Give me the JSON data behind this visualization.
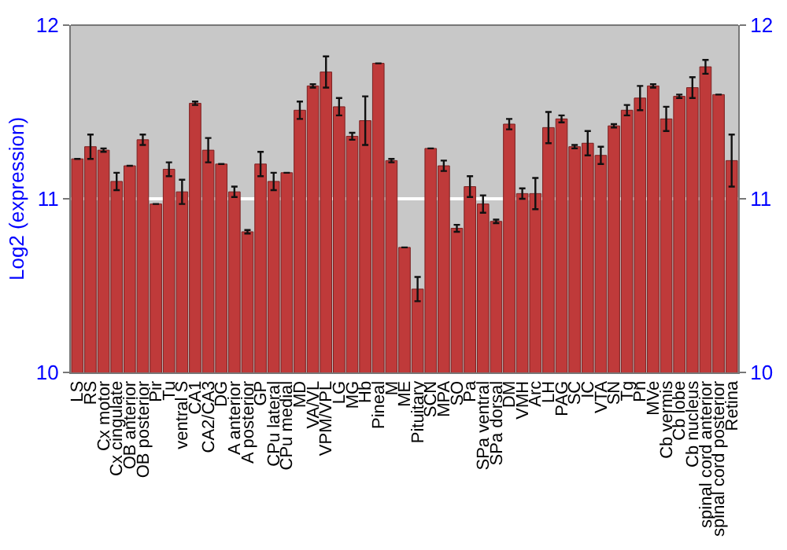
{
  "chart_data": {
    "type": "bar",
    "ylabel": "Log2 (expression)",
    "categories": [
      "LS",
      "RS",
      "Cx motor",
      "Cx cingulate",
      "OB anterior",
      "OB posterior",
      "Pir",
      "Tu",
      "ventral S",
      "CA1",
      "CA2/CA3",
      "DG",
      "A anterior",
      "A posterior",
      "GP",
      "CPu lateral",
      "CPu medial",
      "MD",
      "VA/VL",
      "VPM/VPL",
      "LG",
      "MG",
      "Hb",
      "Pineal",
      "M",
      "ME",
      "Pituitary",
      "SCN",
      "MPA",
      "SO",
      "Pa",
      "SPa ventral",
      "SPa dorsal",
      "DM",
      "VMH",
      "Arc",
      "LH",
      "PAG",
      "SC",
      "IC",
      "VTA",
      "SN",
      "Tg",
      "Pn",
      "MVe",
      "Cb vermis",
      "Cb lobe",
      "Cb nucleus",
      "spinal cord anterior",
      "spinal cord posterior",
      "Retina"
    ],
    "values": [
      11.23,
      11.3,
      11.28,
      11.1,
      11.19,
      11.34,
      10.97,
      11.17,
      11.04,
      11.55,
      11.28,
      11.2,
      11.04,
      10.81,
      11.2,
      11.1,
      11.15,
      11.51,
      11.65,
      11.73,
      11.53,
      11.36,
      11.45,
      11.78,
      11.22,
      10.72,
      10.48,
      11.29,
      11.19,
      10.83,
      11.07,
      10.97,
      10.87,
      11.43,
      11.03,
      11.03,
      11.41,
      11.46,
      11.3,
      11.32,
      11.25,
      11.42,
      11.51,
      11.58,
      11.65,
      11.46,
      11.59,
      11.64,
      11.76,
      11.6,
      11.22
    ],
    "errors": [
      null,
      0.07,
      0.01,
      0.05,
      null,
      0.03,
      null,
      0.04,
      0.07,
      0.01,
      0.07,
      null,
      0.03,
      0.01,
      0.07,
      0.05,
      null,
      0.05,
      0.01,
      0.09,
      0.05,
      0.02,
      0.14,
      null,
      0.01,
      null,
      0.07,
      null,
      0.03,
      0.02,
      0.06,
      0.05,
      0.01,
      0.03,
      0.03,
      0.09,
      0.09,
      0.02,
      0.01,
      0.07,
      0.05,
      0.01,
      0.03,
      0.07,
      0.01,
      0.07,
      0.01,
      0.06,
      0.04,
      null,
      0.15
    ],
    "color": "#bf3a3a",
    "ylim": [
      10,
      12
    ],
    "yticks": [
      10,
      11,
      12
    ],
    "y2lim": [
      10,
      12
    ],
    "y2ticks": [
      10,
      11,
      12
    ],
    "grid": "y"
  }
}
